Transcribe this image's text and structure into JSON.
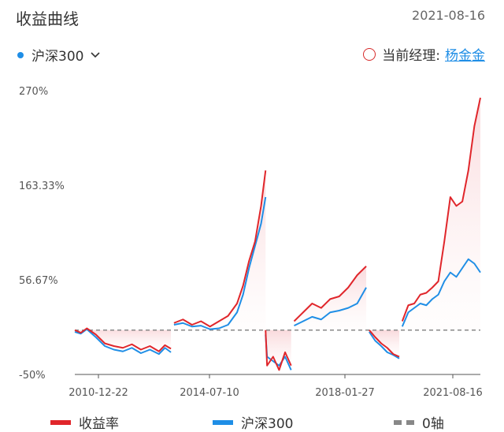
{
  "header": {
    "title": "收益曲线",
    "date": "2021-08-16"
  },
  "controls": {
    "index_label": "沪深300",
    "manager_prefix": "当前经理:",
    "manager_name": "杨金金"
  },
  "colors": {
    "fund": "#e0262b",
    "index": "#1f8ee6",
    "zero": "#888888"
  },
  "chart_data": {
    "type": "line",
    "title": "",
    "ylabel": "",
    "y_ticks": [
      "270%",
      "163.33%",
      "56.67%",
      "-50%"
    ],
    "y_tick_values": [
      270,
      163.33,
      56.67,
      -50
    ],
    "ylim": [
      -50,
      270
    ],
    "x_ticks": [
      "2010-12-22",
      "2014-07-10",
      "2018-01-27",
      "2021-08-16"
    ],
    "legend": [
      "收益率",
      "沪深300",
      "0轴"
    ],
    "legend_position": "bottom",
    "zero_line": 0,
    "series": [
      {
        "name": "收益率",
        "segments": [
          [
            [
              0,
              0
            ],
            [
              0.02,
              -3
            ],
            [
              0.04,
              2
            ],
            [
              0.07,
              -5
            ],
            [
              0.1,
              -15
            ],
            [
              0.13,
              -18
            ],
            [
              0.16,
              -20
            ],
            [
              0.19,
              -16
            ],
            [
              0.22,
              -22
            ],
            [
              0.25,
              -18
            ],
            [
              0.28,
              -24
            ],
            [
              0.3,
              -17
            ],
            [
              0.32,
              -21
            ]
          ],
          [
            [
              0.33,
              8
            ],
            [
              0.36,
              12
            ],
            [
              0.39,
              6
            ],
            [
              0.42,
              10
            ],
            [
              0.45,
              4
            ],
            [
              0.48,
              10
            ],
            [
              0.51,
              16
            ],
            [
              0.54,
              30
            ],
            [
              0.56,
              50
            ],
            [
              0.58,
              78
            ],
            [
              0.6,
              100
            ],
            [
              0.62,
              140
            ],
            [
              0.635,
              180
            ]
          ],
          [
            [
              0.635,
              0
            ],
            [
              0.64,
              -40
            ],
            [
              0.66,
              -30
            ],
            [
              0.68,
              -45
            ],
            [
              0.7,
              -25
            ],
            [
              0.72,
              -40
            ]
          ],
          [
            [
              0.73,
              10
            ],
            [
              0.76,
              20
            ],
            [
              0.79,
              30
            ],
            [
              0.82,
              25
            ],
            [
              0.85,
              35
            ],
            [
              0.88,
              38
            ],
            [
              0.91,
              48
            ],
            [
              0.94,
              62
            ],
            [
              0.97,
              72
            ]
          ],
          [
            [
              0.98,
              0
            ],
            [
              1.0,
              -8
            ],
            [
              1.02,
              -15
            ],
            [
              1.04,
              -20
            ],
            [
              1.06,
              -27
            ],
            [
              1.08,
              -30
            ]
          ],
          [
            [
              1.09,
              10
            ],
            [
              1.11,
              28
            ],
            [
              1.13,
              30
            ],
            [
              1.15,
              40
            ],
            [
              1.17,
              42
            ],
            [
              1.19,
              48
            ],
            [
              1.21,
              55
            ],
            [
              1.23,
              100
            ],
            [
              1.25,
              150
            ],
            [
              1.27,
              140
            ],
            [
              1.29,
              145
            ],
            [
              1.31,
              180
            ],
            [
              1.33,
              230
            ],
            [
              1.35,
              262
            ]
          ]
        ]
      },
      {
        "name": "沪深300",
        "segments": [
          [
            [
              0,
              -2
            ],
            [
              0.02,
              -4
            ],
            [
              0.04,
              1
            ],
            [
              0.07,
              -8
            ],
            [
              0.1,
              -18
            ],
            [
              0.13,
              -22
            ],
            [
              0.16,
              -24
            ],
            [
              0.19,
              -20
            ],
            [
              0.22,
              -26
            ],
            [
              0.25,
              -22
            ],
            [
              0.28,
              -27
            ],
            [
              0.3,
              -20
            ],
            [
              0.32,
              -25
            ]
          ],
          [
            [
              0.33,
              6
            ],
            [
              0.36,
              8
            ],
            [
              0.39,
              4
            ],
            [
              0.42,
              5
            ],
            [
              0.45,
              1
            ],
            [
              0.48,
              2
            ],
            [
              0.51,
              6
            ],
            [
              0.54,
              20
            ],
            [
              0.56,
              40
            ],
            [
              0.58,
              70
            ],
            [
              0.6,
              95
            ],
            [
              0.62,
              120
            ],
            [
              0.635,
              150
            ]
          ],
          [
            [
              0.635,
              -5
            ],
            [
              0.64,
              -30
            ],
            [
              0.66,
              -35
            ],
            [
              0.68,
              -40
            ],
            [
              0.7,
              -30
            ],
            [
              0.72,
              -45
            ]
          ],
          [
            [
              0.73,
              5
            ],
            [
              0.76,
              10
            ],
            [
              0.79,
              15
            ],
            [
              0.82,
              12
            ],
            [
              0.85,
              20
            ],
            [
              0.88,
              22
            ],
            [
              0.91,
              25
            ],
            [
              0.94,
              30
            ],
            [
              0.97,
              48
            ]
          ],
          [
            [
              0.98,
              -2
            ],
            [
              1.0,
              -12
            ],
            [
              1.02,
              -18
            ],
            [
              1.04,
              -25
            ],
            [
              1.06,
              -28
            ],
            [
              1.08,
              -32
            ]
          ],
          [
            [
              1.09,
              4
            ],
            [
              1.11,
              20
            ],
            [
              1.13,
              25
            ],
            [
              1.15,
              30
            ],
            [
              1.17,
              28
            ],
            [
              1.19,
              35
            ],
            [
              1.21,
              40
            ],
            [
              1.23,
              55
            ],
            [
              1.25,
              65
            ],
            [
              1.27,
              60
            ],
            [
              1.29,
              70
            ],
            [
              1.31,
              80
            ],
            [
              1.33,
              75
            ],
            [
              1.35,
              65
            ]
          ]
        ]
      }
    ]
  }
}
